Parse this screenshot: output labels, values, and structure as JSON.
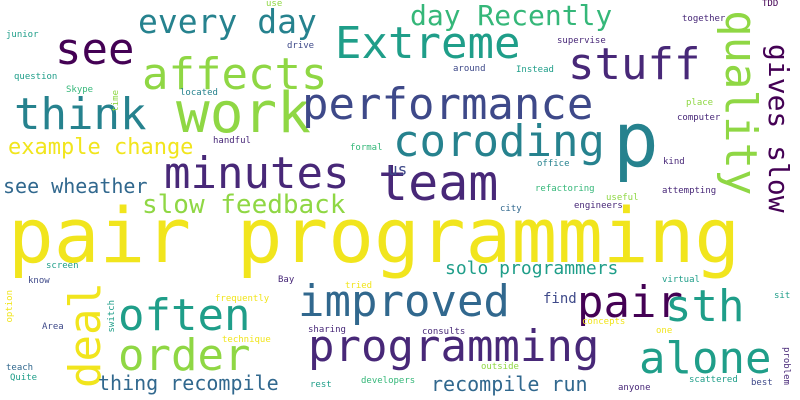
{
  "palette": {
    "yellow": "#f1e51d",
    "lime": "#8fd744",
    "green": "#35b779",
    "teal": "#1f9e89",
    "blue": "#26828e",
    "slate": "#31688e",
    "indigo": "#3e4989",
    "purple": "#482878",
    "dark": "#440154"
  },
  "words": [
    {
      "text": "pair programming",
      "color": "yellow"
    },
    {
      "text": "p",
      "color": "blue"
    },
    {
      "text": "work",
      "color": "lime"
    },
    {
      "text": "performance",
      "color": "indigo"
    },
    {
      "text": "team",
      "color": "purple"
    },
    {
      "text": "Extreme",
      "color": "teal"
    },
    {
      "text": "programming",
      "color": "purple"
    },
    {
      "text": "pair",
      "color": "dark"
    },
    {
      "text": "improved",
      "color": "slate"
    },
    {
      "text": "think",
      "color": "blue"
    },
    {
      "text": "see",
      "color": "dark"
    },
    {
      "text": "affects",
      "color": "lime"
    },
    {
      "text": "stuff",
      "color": "purple"
    },
    {
      "text": "minutes",
      "color": "purple"
    },
    {
      "text": "coroding",
      "color": "blue"
    },
    {
      "text": "often",
      "color": "teal"
    },
    {
      "text": "order",
      "color": "lime"
    },
    {
      "text": "alone",
      "color": "teal"
    },
    {
      "text": "sth",
      "color": "teal"
    },
    {
      "text": "quality",
      "color": "lime"
    },
    {
      "text": "deal",
      "color": "yellow"
    },
    {
      "text": "every day",
      "color": "blue"
    },
    {
      "text": "day Recently",
      "color": "green"
    },
    {
      "text": "gives slow",
      "color": "dark"
    },
    {
      "text": "slow feedback",
      "color": "lime"
    },
    {
      "text": "example change",
      "color": "yellow"
    },
    {
      "text": "see wheather",
      "color": "slate"
    },
    {
      "text": "solo programmers",
      "color": "teal"
    },
    {
      "text": "thing recompile",
      "color": "slate"
    },
    {
      "text": "recompile run",
      "color": "slate"
    },
    {
      "text": "us",
      "color": "indigo"
    },
    {
      "text": "find",
      "color": "indigo"
    },
    {
      "text": "junior",
      "color": "teal"
    },
    {
      "text": "question",
      "color": "teal"
    },
    {
      "text": "Skype",
      "color": "green"
    },
    {
      "text": "time",
      "color": "lime"
    },
    {
      "text": "located",
      "color": "blue"
    },
    {
      "text": "handful",
      "color": "purple"
    },
    {
      "text": "formal",
      "color": "green"
    },
    {
      "text": "office",
      "color": "blue"
    },
    {
      "text": "city",
      "color": "slate"
    },
    {
      "text": "screen",
      "color": "teal"
    },
    {
      "text": "know",
      "color": "indigo"
    },
    {
      "text": "Bay",
      "color": "purple"
    },
    {
      "text": "tried",
      "color": "yellow"
    },
    {
      "text": "frequently",
      "color": "yellow"
    },
    {
      "text": "switch",
      "color": "teal"
    },
    {
      "text": "option",
      "color": "yellow"
    },
    {
      "text": "Area",
      "color": "indigo"
    },
    {
      "text": "technique",
      "color": "yellow"
    },
    {
      "text": "sharing",
      "color": "purple"
    },
    {
      "text": "consults",
      "color": "purple"
    },
    {
      "text": "concepts",
      "color": "yellow"
    },
    {
      "text": "one",
      "color": "yellow"
    },
    {
      "text": "outside",
      "color": "lime"
    },
    {
      "text": "teach",
      "color": "slate"
    },
    {
      "text": "Quite",
      "color": "teal"
    },
    {
      "text": "rest",
      "color": "teal"
    },
    {
      "text": "developers",
      "color": "green"
    },
    {
      "text": "anyone",
      "color": "purple"
    },
    {
      "text": "scattered",
      "color": "teal"
    },
    {
      "text": "best",
      "color": "indigo"
    },
    {
      "text": "problem",
      "color": "purple"
    },
    {
      "text": "sit",
      "color": "teal"
    },
    {
      "text": "virtual",
      "color": "teal"
    },
    {
      "text": "use",
      "color": "lime"
    },
    {
      "text": "drive",
      "color": "indigo"
    },
    {
      "text": "around",
      "color": "indigo"
    },
    {
      "text": "Instead",
      "color": "teal"
    },
    {
      "text": "supervise",
      "color": "purple"
    },
    {
      "text": "together",
      "color": "purple"
    },
    {
      "text": "TDD",
      "color": "dark"
    },
    {
      "text": "place",
      "color": "lime"
    },
    {
      "text": "computer",
      "color": "purple"
    },
    {
      "text": "kind",
      "color": "purple"
    },
    {
      "text": "refactoring",
      "color": "green"
    },
    {
      "text": "useful",
      "color": "lime"
    },
    {
      "text": "engineers",
      "color": "purple"
    },
    {
      "text": "attempting",
      "color": "purple"
    }
  ]
}
